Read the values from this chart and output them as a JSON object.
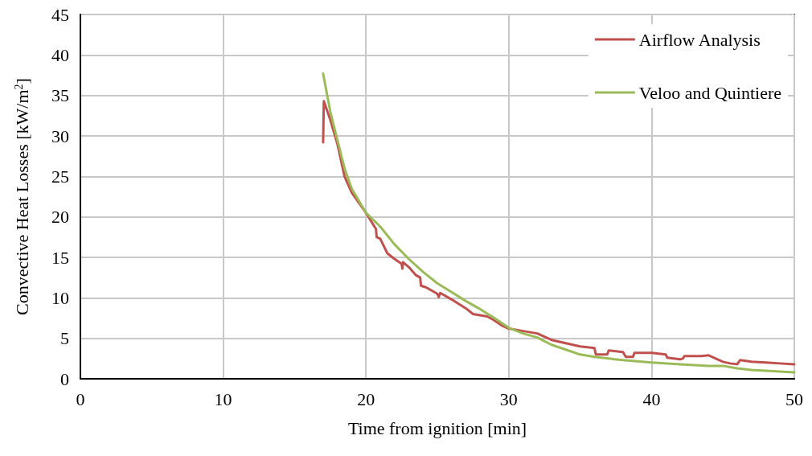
{
  "chart_data": {
    "type": "line",
    "xlabel": "Time from ignition [min]",
    "ylabel": "Convective Heat Losses [kW/m$^{2}$]",
    "xlim": [
      0,
      50
    ],
    "xticks": [
      0,
      10,
      20,
      30,
      40,
      50
    ],
    "ylim": [
      0,
      45
    ],
    "yticks": [
      0,
      5,
      10,
      15,
      20,
      25,
      30,
      35,
      40,
      45
    ],
    "grid": true,
    "legend": "top right",
    "marker": "none",
    "line_style": "solid",
    "series": [
      {
        "name": "Airflow Analysis",
        "color": "#c0504d",
        "x": [
          17.0,
          17.05,
          17.5,
          18,
          18.5,
          19,
          20,
          20.7,
          20.75,
          21,
          21.5,
          22,
          22.5,
          22.55,
          22.6,
          23,
          23.5,
          23.8,
          23.85,
          24.2,
          25,
          25.1,
          25.2,
          26,
          27,
          27.5,
          28.5,
          29,
          29.5,
          30,
          31,
          32,
          33,
          34,
          35,
          36,
          36.1,
          36.9,
          37,
          38,
          38.2,
          38.7,
          38.8,
          39.5,
          40,
          41,
          41.1,
          42,
          42.2,
          42.3,
          43.5,
          44,
          45,
          45.5,
          46,
          46.2,
          47,
          48,
          49,
          50
        ],
        "values": [
          29.2,
          34.3,
          32,
          29,
          25,
          23,
          20.5,
          18.5,
          17.5,
          17.3,
          15.5,
          14.8,
          14.2,
          13.6,
          14.4,
          13.8,
          12.8,
          12.5,
          11.5,
          11.3,
          10.5,
          10.1,
          10.6,
          9.8,
          8.7,
          8.0,
          7.7,
          7.2,
          6.6,
          6.2,
          5.9,
          5.6,
          4.8,
          4.4,
          4.0,
          3.8,
          3.0,
          3.0,
          3.5,
          3.3,
          2.7,
          2.7,
          3.2,
          3.2,
          3.2,
          3.0,
          2.6,
          2.4,
          2.5,
          2.8,
          2.8,
          2.9,
          2.1,
          1.9,
          1.8,
          2.3,
          2.1,
          2.0,
          1.9,
          1.8
        ]
      },
      {
        "name": "Veloo and Quintiere",
        "color": "#9bbb59",
        "x": [
          17,
          17.5,
          18,
          18.5,
          19,
          19.5,
          20,
          21,
          22,
          23,
          24,
          25,
          26,
          27,
          28,
          29,
          30,
          31,
          32,
          33,
          34,
          35,
          36,
          37,
          38,
          40,
          42,
          44,
          45,
          46,
          47,
          48,
          50
        ],
        "values": [
          37.7,
          33,
          29.5,
          26,
          23.5,
          22,
          20.5,
          18.8,
          16.6,
          14.8,
          13.2,
          11.8,
          10.7,
          9.6,
          8.6,
          7.5,
          6.3,
          5.6,
          5.1,
          4.2,
          3.6,
          3.0,
          2.7,
          2.5,
          2.3,
          2.0,
          1.8,
          1.6,
          1.6,
          1.3,
          1.1,
          1.0,
          0.8
        ]
      }
    ]
  }
}
